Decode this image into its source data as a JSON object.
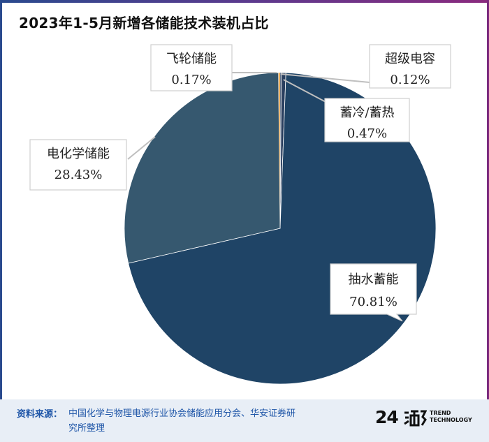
{
  "title": "2023年1-5月新增各储能技术装机占比",
  "chart_data": {
    "type": "pie",
    "title": "2023年1-5月新增各储能技术装机占比",
    "slices": [
      {
        "label": "超级电容",
        "value": 0.12,
        "display": "0.12%",
        "color": "#2a3f5f"
      },
      {
        "label": "蓄冷/蓄热",
        "value": 0.47,
        "display": "0.47%",
        "color": "#2a3f5f"
      },
      {
        "label": "抽水蓄能",
        "value": 70.81,
        "display": "70.81%",
        "color": "#1f4466"
      },
      {
        "label": "电化学储能",
        "value": 28.43,
        "display": "28.43%",
        "color": "#36586f"
      },
      {
        "label": "飞轮储能",
        "value": 0.17,
        "display": "0.17%",
        "color": "#e8a54a"
      }
    ]
  },
  "footer": {
    "source_label": "资料来源：",
    "source_text": "中国化学与物理电源行业协会储能应用分会、华安证券研究所整理"
  },
  "logo": {
    "number": "24",
    "line1": "TREND",
    "line2": "TECHNOLOGY"
  }
}
